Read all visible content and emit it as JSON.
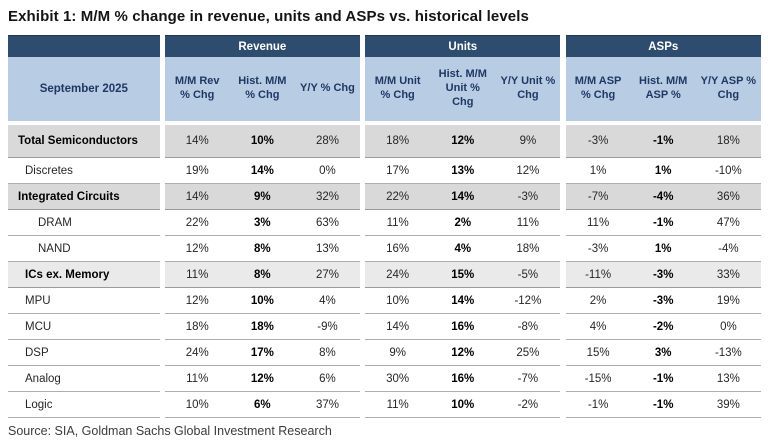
{
  "title": "Exhibit 1: M/M % change in revenue, units and ASPs vs. historical levels",
  "source": "Source: SIA, Goldman Sachs Global Investment Research",
  "colors": {
    "header_navy": "#2e4d6e",
    "subheader_blue": "#b8cce4",
    "subheader_text": "#1f3864",
    "section_row_gray": "#d9d9d9",
    "section_row_light_gray": "#eaeaea"
  },
  "table": {
    "period_label": "September 2025",
    "groups": [
      {
        "label": "Revenue"
      },
      {
        "label": "Units"
      },
      {
        "label": "ASPs"
      }
    ],
    "columns": [
      "M/M Rev\n% Chg",
      "Hist. M/M\n% Chg",
      "Y/Y % Chg",
      "M/M Unit\n% Chg",
      "Hist. M/M\nUnit %\nChg",
      "Y/Y Unit %\nChg",
      "M/M ASP\n% Chg",
      "Hist. M/M\nASP %",
      "Y/Y ASP %\nChg"
    ],
    "bold_columns": [
      1,
      4,
      7
    ],
    "rows": [
      {
        "label": "Total Semiconductors",
        "style": "section-dark",
        "indent": 0,
        "tall": true,
        "values": [
          "14%",
          "10%",
          "28%",
          "18%",
          "12%",
          "9%",
          "-3%",
          "-1%",
          "18%"
        ]
      },
      {
        "label": "Discretes",
        "style": "normal",
        "indent": 1,
        "tall": false,
        "values": [
          "19%",
          "14%",
          "0%",
          "17%",
          "13%",
          "12%",
          "1%",
          "1%",
          "-10%"
        ]
      },
      {
        "label": "Integrated Circuits",
        "style": "section-dark",
        "indent": 0,
        "tall": false,
        "values": [
          "14%",
          "9%",
          "32%",
          "22%",
          "14%",
          "-3%",
          "-7%",
          "-4%",
          "36%"
        ]
      },
      {
        "label": "DRAM",
        "style": "normal",
        "indent": 2,
        "tall": false,
        "values": [
          "22%",
          "3%",
          "63%",
          "11%",
          "2%",
          "11%",
          "11%",
          "-1%",
          "47%"
        ]
      },
      {
        "label": "NAND",
        "style": "normal",
        "indent": 2,
        "tall": false,
        "values": [
          "12%",
          "8%",
          "13%",
          "16%",
          "4%",
          "18%",
          "-3%",
          "1%",
          "-4%"
        ]
      },
      {
        "label": "ICs ex. Memory",
        "style": "section-light",
        "indent": 1,
        "tall": false,
        "values": [
          "11%",
          "8%",
          "27%",
          "24%",
          "15%",
          "-5%",
          "-11%",
          "-3%",
          "33%"
        ]
      },
      {
        "label": "MPU",
        "style": "normal",
        "indent": 1,
        "tall": false,
        "values": [
          "12%",
          "10%",
          "4%",
          "10%",
          "14%",
          "-12%",
          "2%",
          "-3%",
          "19%"
        ]
      },
      {
        "label": "MCU",
        "style": "normal",
        "indent": 1,
        "tall": false,
        "values": [
          "18%",
          "18%",
          "-9%",
          "14%",
          "16%",
          "-8%",
          "4%",
          "-2%",
          "0%"
        ]
      },
      {
        "label": "DSP",
        "style": "normal",
        "indent": 1,
        "tall": false,
        "values": [
          "24%",
          "17%",
          "8%",
          "9%",
          "12%",
          "25%",
          "15%",
          "3%",
          "-13%"
        ]
      },
      {
        "label": "Analog",
        "style": "normal",
        "indent": 1,
        "tall": false,
        "values": [
          "11%",
          "12%",
          "6%",
          "30%",
          "16%",
          "-7%",
          "-15%",
          "-1%",
          "13%"
        ]
      },
      {
        "label": "Logic",
        "style": "normal",
        "indent": 1,
        "tall": false,
        "values": [
          "10%",
          "6%",
          "37%",
          "11%",
          "10%",
          "-2%",
          "-1%",
          "-1%",
          "39%"
        ]
      }
    ]
  }
}
